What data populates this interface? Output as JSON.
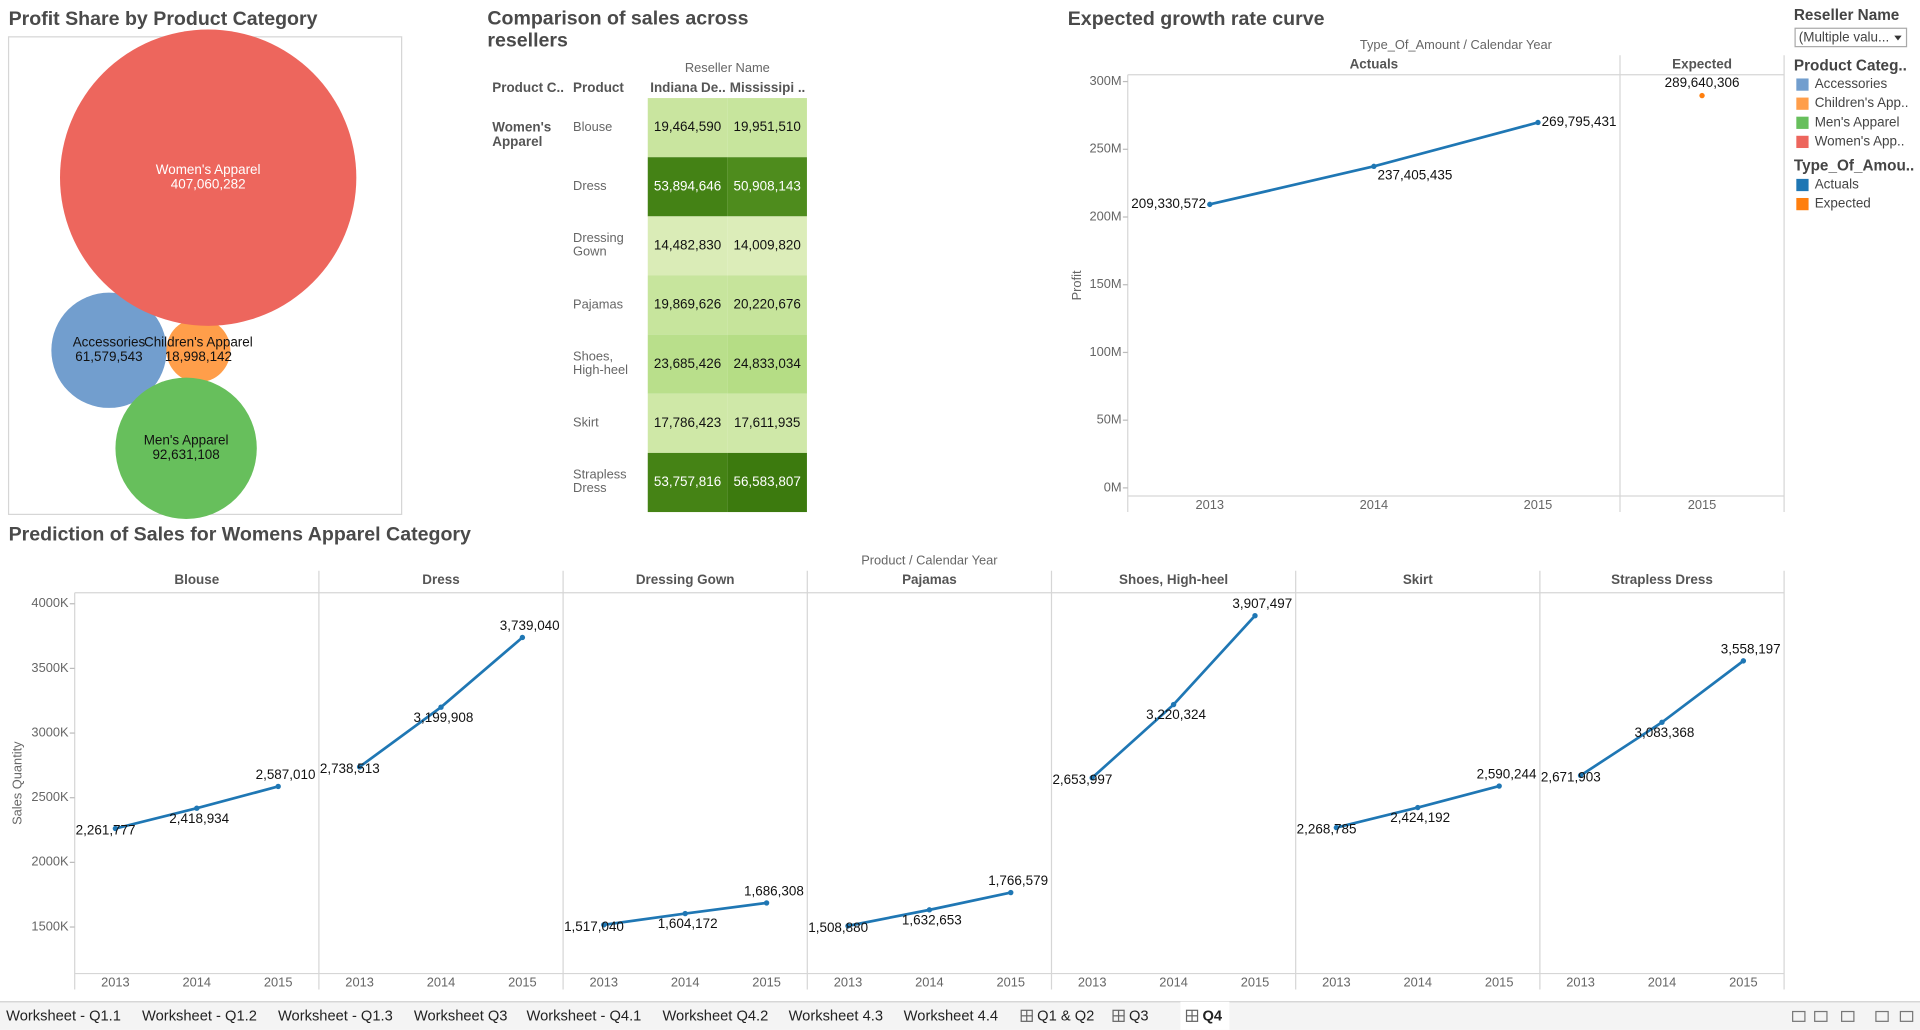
{
  "chart_data": [
    {
      "type": "bubble",
      "title": "Profit Share by Product Category",
      "categories": [
        "Accessories",
        "Children's Apparel",
        "Men's Apparel",
        "Women's Apparel"
      ],
      "values": [
        61579543,
        18998142,
        92631108,
        407060282
      ],
      "value_labels": [
        "61,579,543",
        "18,998,142",
        "92,631,108",
        "407,060,282"
      ],
      "colors": [
        "#729ece",
        "#ff9e4a",
        "#67bf5c",
        "#ed665d"
      ]
    },
    {
      "type": "table",
      "title": "Comparison of sales across resellers",
      "column_group_title": "Reseller Name",
      "row_header": "Product C..",
      "column_header": "Product",
      "group": "Women's Apparel",
      "categories": [
        "Blouse",
        "Dress",
        "Dressing Gown",
        "Pajamas",
        "Shoes, High-heel",
        "Skirt",
        "Strapless Dress"
      ],
      "series": [
        {
          "name": "Indiana De..",
          "values": [
            19464590,
            53894646,
            14482830,
            19869626,
            23685426,
            17786423,
            53757816
          ],
          "value_labels": [
            "19,464,590",
            "53,894,646",
            "14,482,830",
            "19,869,626",
            "23,685,426",
            "17,786,423",
            "53,757,816"
          ]
        },
        {
          "name": "Mississipi ..",
          "values": [
            19951510,
            50908143,
            14009820,
            20220676,
            24833034,
            17611935,
            56583807
          ],
          "value_labels": [
            "19,951,510",
            "50,908,143",
            "14,009,820",
            "20,220,676",
            "24,833,034",
            "17,611,935",
            "56,583,807"
          ]
        }
      ]
    },
    {
      "type": "line",
      "title": "Expected growth rate curve",
      "header": "Type_Of_Amount  /  Calendar Year",
      "y_label": "Profit",
      "ylim": [
        -6000000,
        305000000
      ],
      "yticks": [
        {
          "value": 0,
          "label": "0M"
        },
        {
          "value": 50000000,
          "label": "50M"
        },
        {
          "value": 100000000,
          "label": "100M"
        },
        {
          "value": 150000000,
          "label": "150M"
        },
        {
          "value": 200000000,
          "label": "200M"
        },
        {
          "value": 250000000,
          "label": "250M"
        },
        {
          "value": 300000000,
          "label": "300M"
        }
      ],
      "series": [
        {
          "name": "Actuals",
          "color": "#1f77b4",
          "x": [
            "2013",
            "2014",
            "2015"
          ],
          "values": [
            209330572,
            237405435,
            269795431
          ],
          "value_labels": [
            "209,330,572",
            "237,405,435",
            "269,795,431"
          ]
        },
        {
          "name": "Expected",
          "color": "#ff7f0e",
          "x": [
            "2015"
          ],
          "values": [
            289640306
          ],
          "value_labels": [
            "289,640,306"
          ]
        }
      ]
    },
    {
      "type": "line",
      "title": "Prediction of Sales for Womens Apparel Category",
      "header": "Product  /  Calendar Year",
      "y_label": "Sales Quantity",
      "color": "#1f77b4",
      "x": [
        "2013",
        "2014",
        "2015"
      ],
      "ylim": [
        1140000,
        4085000
      ],
      "yticks": [
        {
          "value": 1500000,
          "label": "1500K"
        },
        {
          "value": 2000000,
          "label": "2000K"
        },
        {
          "value": 2500000,
          "label": "2500K"
        },
        {
          "value": 3000000,
          "label": "3000K"
        },
        {
          "value": 3500000,
          "label": "3500K"
        },
        {
          "value": 4000000,
          "label": "4000K"
        }
      ],
      "series": [
        {
          "name": "Blouse",
          "values": [
            2261777,
            2418934,
            2587010
          ],
          "value_labels": [
            "2,261,777",
            "2,418,934",
            "2,587,010"
          ]
        },
        {
          "name": "Dress",
          "values": [
            2738513,
            3199908,
            3739040
          ],
          "value_labels": [
            "2,738,513",
            "3,199,908",
            "3,739,040"
          ]
        },
        {
          "name": "Dressing Gown",
          "values": [
            1517040,
            1604172,
            1686308
          ],
          "value_labels": [
            "1,517,040",
            "1,604,172",
            "1,686,308"
          ]
        },
        {
          "name": "Pajamas",
          "values": [
            1508880,
            1632653,
            1766579
          ],
          "value_labels": [
            "1,508,880",
            "1,632,653",
            "1,766,579"
          ]
        },
        {
          "name": "Shoes, High-heel",
          "values": [
            2653997,
            3220324,
            3907497
          ],
          "value_labels": [
            "2,653,997",
            "3,220,324",
            "3,907,497"
          ]
        },
        {
          "name": "Skirt",
          "values": [
            2268785,
            2424192,
            2590244
          ],
          "value_labels": [
            "2,268,785",
            "2,424,192",
            "2,590,244"
          ]
        },
        {
          "name": "Strapless Dress",
          "values": [
            2671903,
            3083368,
            3558197
          ],
          "value_labels": [
            "2,671,903",
            "3,083,368",
            "3,558,197"
          ]
        }
      ]
    }
  ],
  "filter": {
    "title": "Reseller Name",
    "selected": "(Multiple valu..."
  },
  "legends": [
    {
      "title": "Product Categ..",
      "labels": [
        "Accessories",
        "Children's App..",
        "Men's Apparel",
        "Women's App.."
      ]
    },
    {
      "title": "Type_Of_Amou.."
    }
  ],
  "tabs": [
    "Worksheet - Q1.1",
    "Worksheet - Q1.2",
    "Worksheet - Q1.3",
    "Worksheet Q3",
    "Worksheet - Q4.1",
    "Worksheet Q4.2",
    "Worksheet 4.3",
    "Worksheet 4.4",
    "Q1 & Q2",
    "Q3",
    "Q4"
  ],
  "active_tab": 10
}
